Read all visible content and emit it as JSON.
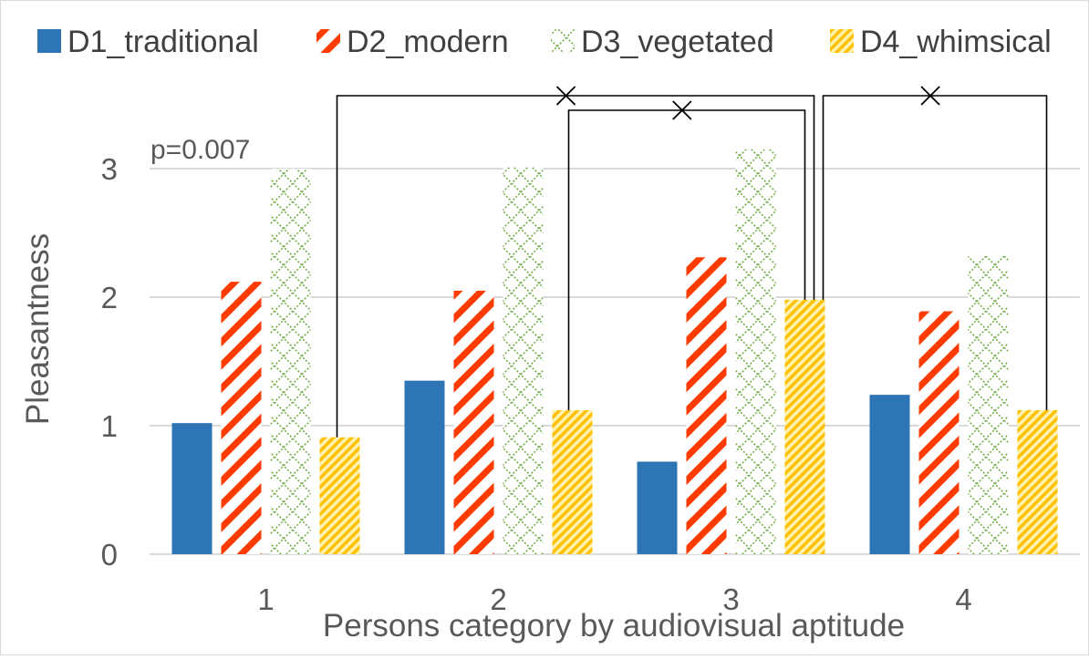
{
  "chart_data": {
    "type": "bar",
    "title": "",
    "xlabel": "Persons category by audiovisual aptitude",
    "ylabel": "Pleasantness",
    "ylim": [
      0,
      3.5
    ],
    "yticks": [
      "0",
      "1",
      "2",
      "3"
    ],
    "categories": [
      "1",
      "2",
      "3",
      "4"
    ],
    "series": [
      {
        "name": "D1_traditional",
        "values": [
          1.02,
          1.35,
          0.72,
          1.24
        ],
        "color": "#2e75b6",
        "pattern": "solid"
      },
      {
        "name": "D2_modern",
        "values": [
          2.12,
          2.05,
          2.31,
          1.89
        ],
        "color": "#ff3b00",
        "pattern": "diagonal-stripes"
      },
      {
        "name": "D3_vegetated",
        "values": [
          3.0,
          3.01,
          3.15,
          2.32
        ],
        "color": "#70ad47",
        "pattern": "lattice"
      },
      {
        "name": "D4_whimsical",
        "values": [
          0.91,
          1.12,
          1.98,
          1.12
        ],
        "color": "#ffc000",
        "pattern": "dense-stripes"
      }
    ],
    "gridlines": true,
    "legend_position": "top",
    "annotations": [
      {
        "text": "p=0.007"
      }
    ]
  }
}
